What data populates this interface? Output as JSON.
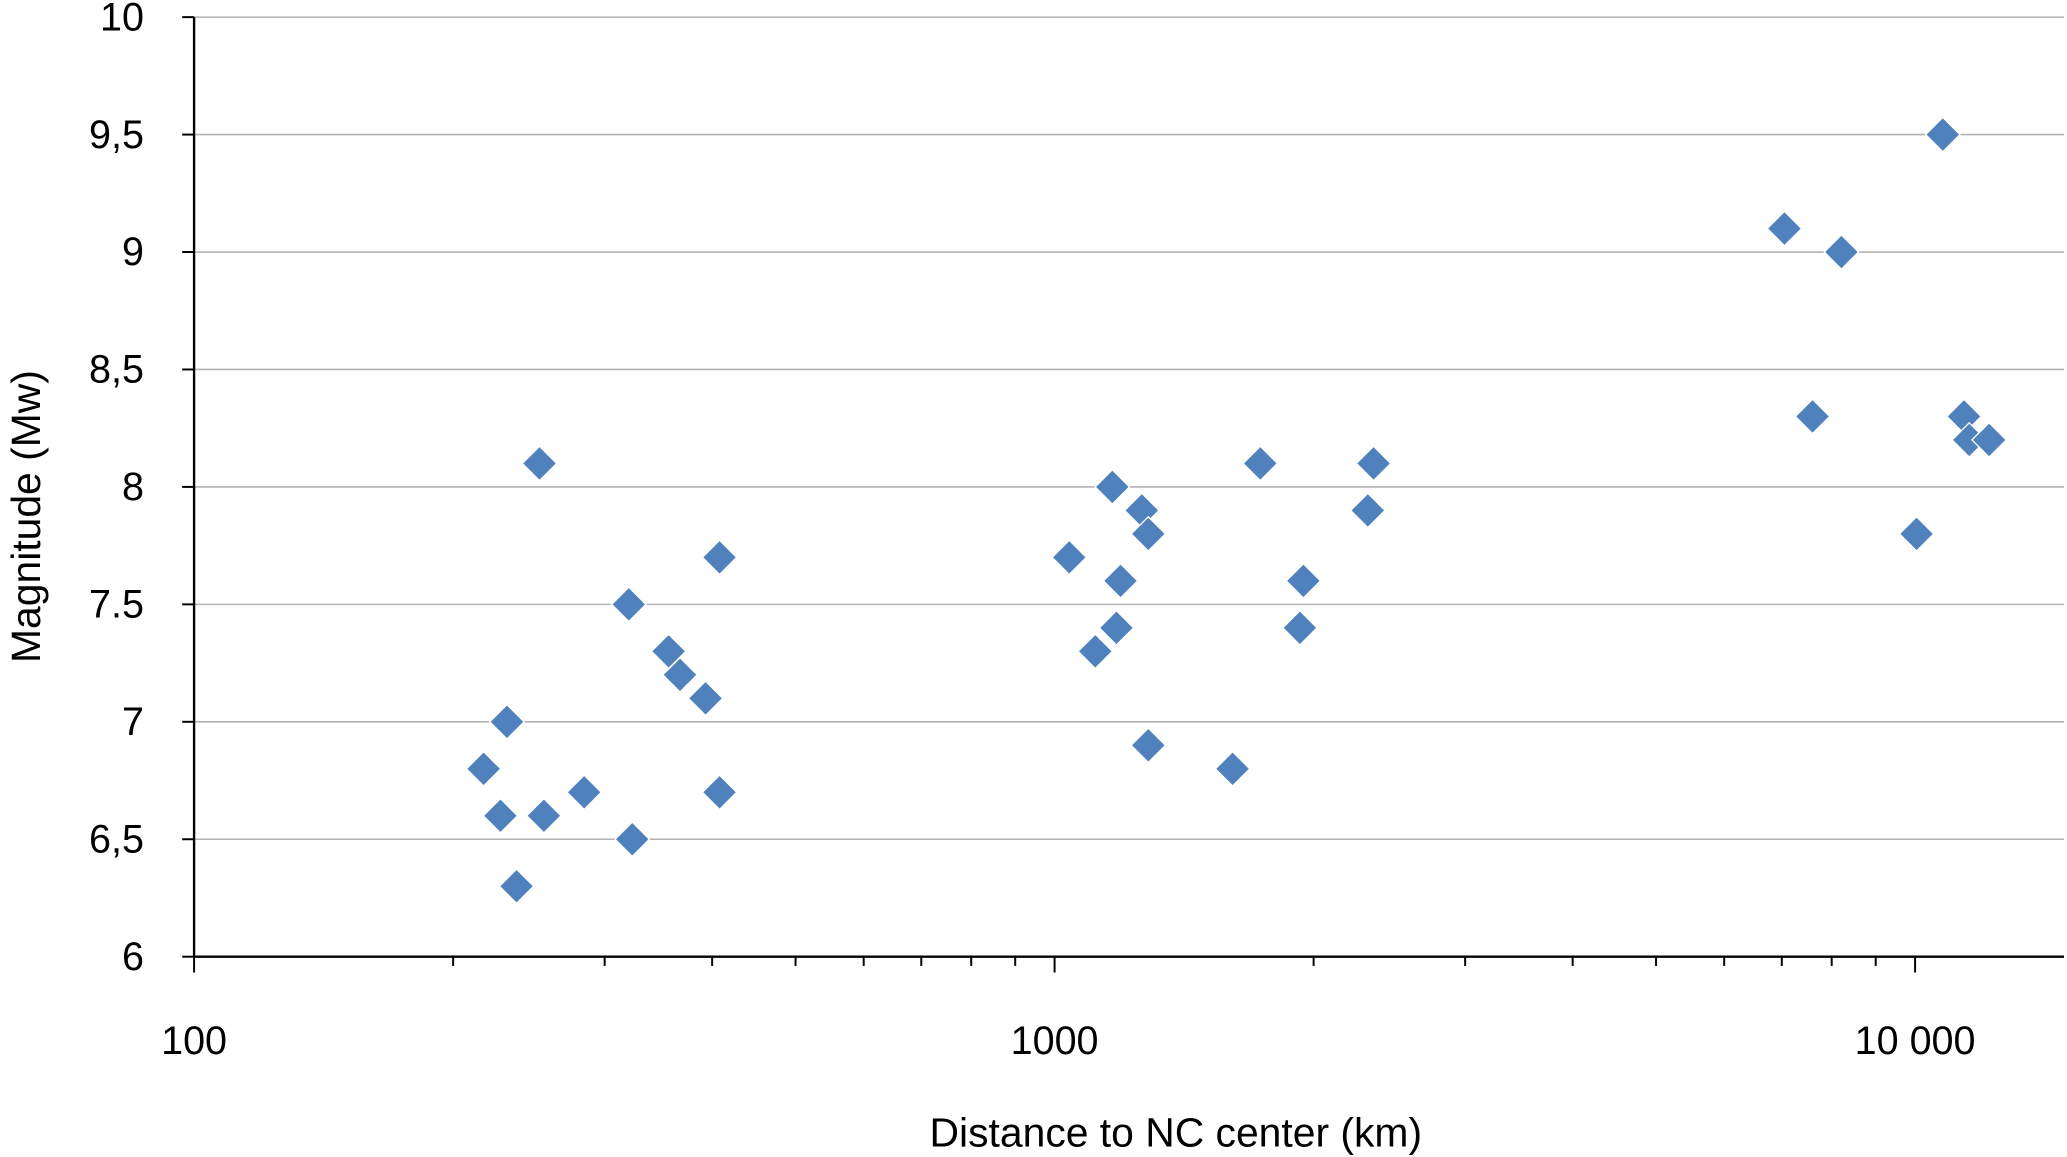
{
  "chart_data": {
    "type": "scatter",
    "title": "",
    "xlabel": "Distance to NC center (km)",
    "ylabel": "Magnitude (Mw)",
    "xscale": "log",
    "xlim": [
      100,
      15000
    ],
    "ylim": [
      6,
      10
    ],
    "grid": "horizontal major",
    "legend": "none",
    "marker": "diamond",
    "marker_color": "#4F81BD",
    "x_ticks": [
      100,
      1000,
      10000
    ],
    "x_tick_labels": [
      "100",
      "1000",
      "10 000"
    ],
    "y_ticks": [
      6,
      6.5,
      7,
      7.5,
      8,
      8.5,
      9,
      9.5,
      10
    ],
    "y_tick_labels": [
      "6",
      "6,5",
      "7",
      "7.5",
      "8",
      "8,5",
      "9",
      "9,5",
      "10"
    ],
    "points": [
      [
        217,
        6.8
      ],
      [
        227,
        6.6
      ],
      [
        231,
        7.0
      ],
      [
        237,
        6.3
      ],
      [
        252,
        8.1
      ],
      [
        255,
        6.6
      ],
      [
        284,
        6.7
      ],
      [
        320,
        7.5
      ],
      [
        323,
        6.5
      ],
      [
        356,
        7.3
      ],
      [
        367,
        7.2
      ],
      [
        393,
        7.1
      ],
      [
        408,
        7.7
      ],
      [
        408,
        6.7
      ],
      [
        1040,
        7.7
      ],
      [
        1115,
        7.3
      ],
      [
        1167,
        8.0
      ],
      [
        1180,
        7.4
      ],
      [
        1193,
        7.6
      ],
      [
        1263,
        7.9
      ],
      [
        1285,
        7.8
      ],
      [
        1285,
        6.9
      ],
      [
        1610,
        6.8
      ],
      [
        1734,
        8.1
      ],
      [
        1928,
        7.4
      ],
      [
        1946,
        7.6
      ],
      [
        2312,
        7.9
      ],
      [
        2348,
        8.1
      ],
      [
        7050,
        9.1
      ],
      [
        7600,
        8.3
      ],
      [
        8210,
        9.0
      ],
      [
        10040,
        7.8
      ],
      [
        10770,
        9.5
      ],
      [
        11400,
        8.3
      ],
      [
        11560,
        8.2
      ],
      [
        12190,
        8.2
      ]
    ]
  }
}
